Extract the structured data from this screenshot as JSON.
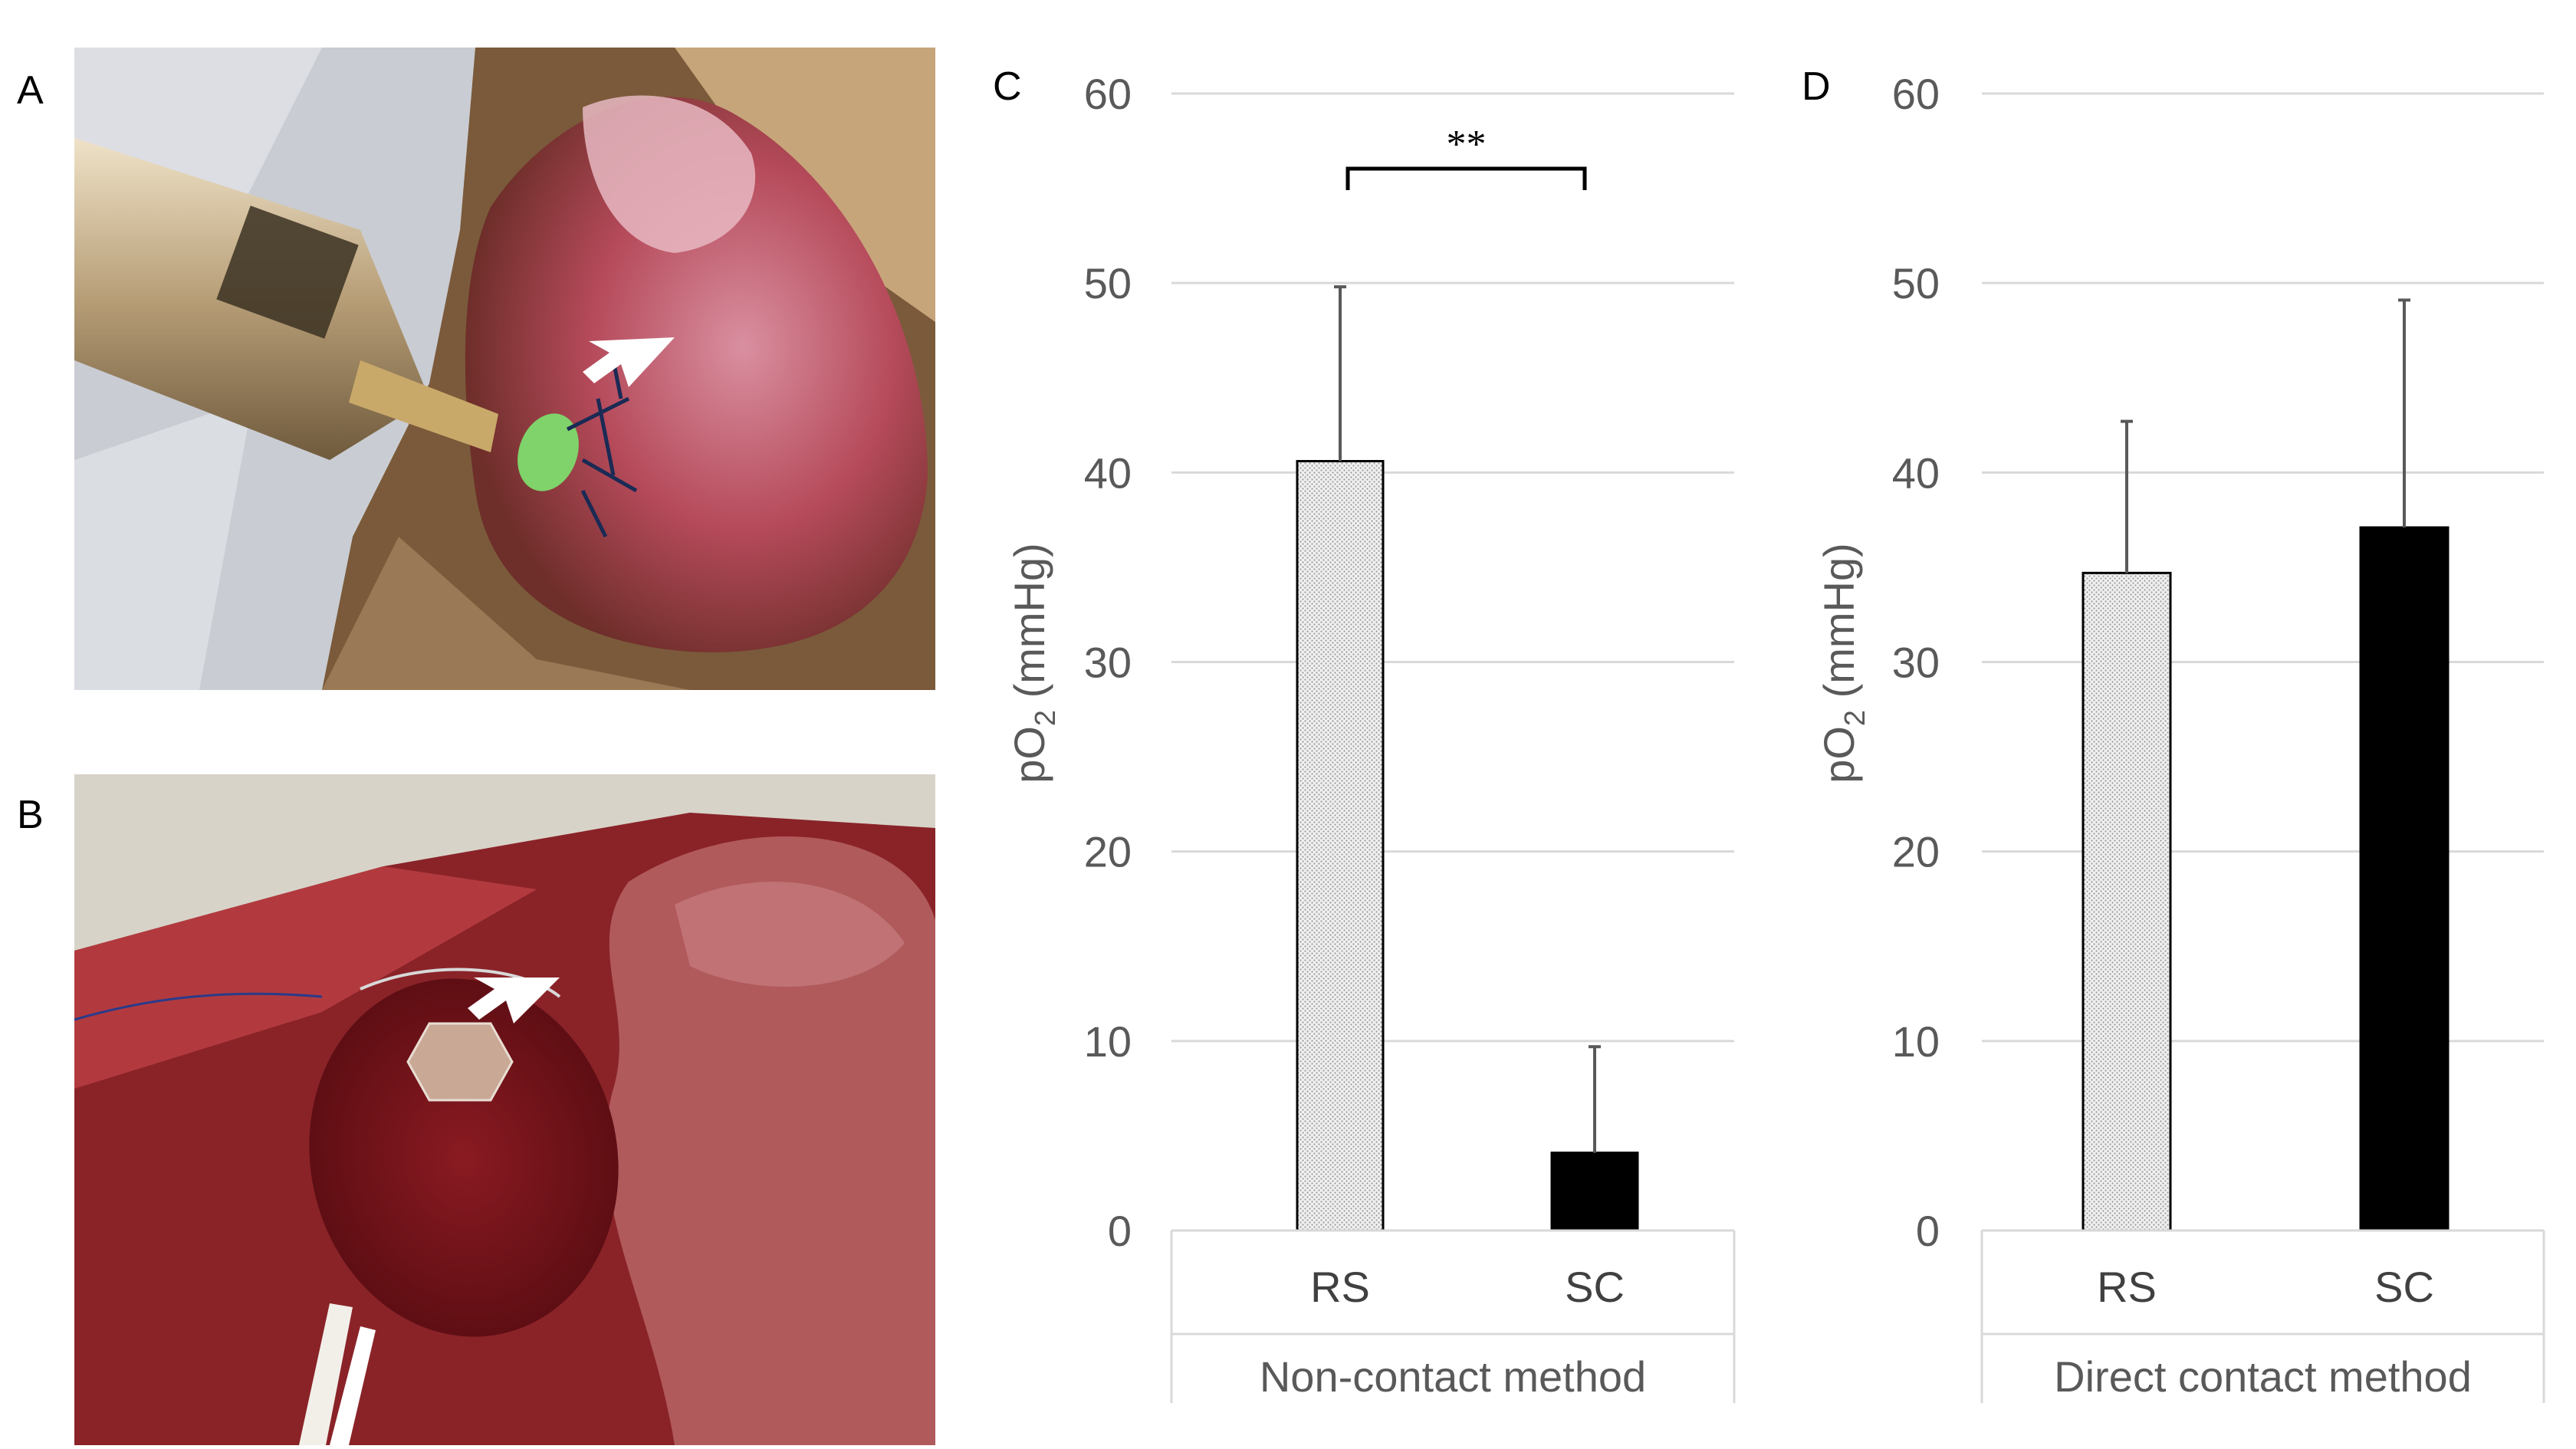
{
  "panels": {
    "A": "A",
    "B": "B",
    "C": "C",
    "D": "D"
  },
  "colors": {
    "rs_fill": "#e6e6e6",
    "sc_fill": "#000000",
    "grid": "#d9d9d9",
    "tick_text": "#595959",
    "error_bar": "#595959"
  },
  "chart_data": [
    {
      "type": "bar",
      "panel": "C",
      "categories": [
        "RS",
        "SC"
      ],
      "group_label": "Non-contact method",
      "values": [
        40.6,
        4.1
      ],
      "errors": [
        9.2,
        5.6
      ],
      "ylabel": "pO2 (mmHg)",
      "ylabel_main": "pO",
      "ylabel_sub": "2",
      "ylabel_unit": " (mmHg)",
      "ylim": [
        0,
        60
      ],
      "yticks": [
        "0",
        "10",
        "20",
        "30",
        "40",
        "50",
        "60"
      ],
      "grid": true,
      "significance": {
        "label": "**",
        "between": [
          "RS",
          "SC"
        ]
      }
    },
    {
      "type": "bar",
      "panel": "D",
      "categories": [
        "RS",
        "SC"
      ],
      "group_label": "Direct contact method",
      "values": [
        34.7,
        37.1
      ],
      "errors": [
        8.0,
        12.0
      ],
      "ylabel": "pO2 (mmHg)",
      "ylabel_main": "pO",
      "ylabel_sub": "2",
      "ylabel_unit": " (mmHg)",
      "ylim": [
        0,
        60
      ],
      "yticks": [
        "0",
        "10",
        "20",
        "30",
        "40",
        "50",
        "60"
      ],
      "grid": true
    }
  ],
  "photos": [
    {
      "panel": "A",
      "subject": "probe-on-tissue-photo"
    },
    {
      "panel": "B",
      "subject": "hexagonal-sensor-on-organ-photo"
    }
  ]
}
